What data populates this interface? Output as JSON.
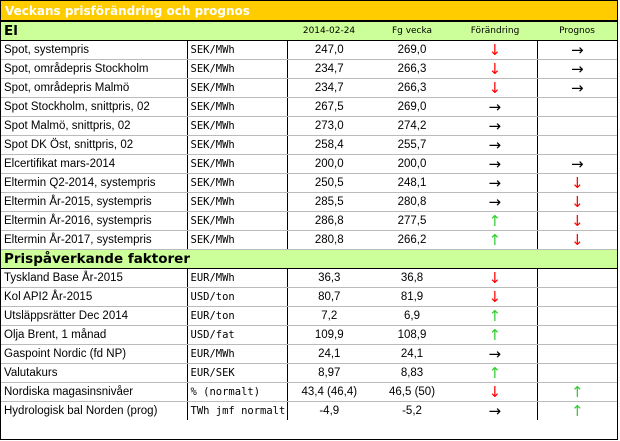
{
  "title": "Veckans prisförändring och prognos",
  "sections": [
    {
      "name": "El",
      "headers": {
        "date": "2014-02-24",
        "prev": "Fg vecka",
        "change": "Förändring",
        "forecast": "Prognos"
      },
      "rows": [
        {
          "name": "Spot, systempris",
          "unit": "SEK/MWh",
          "v1": "247,0",
          "v2": "269,0",
          "change": "down",
          "forecast": "right"
        },
        {
          "name": "Spot, områdepris Stockholm",
          "unit": "SEK/MWh",
          "v1": "234,7",
          "v2": "266,3",
          "change": "down",
          "forecast": "right"
        },
        {
          "name": "Spot, områdepris Malmö",
          "unit": "SEK/MWh",
          "v1": "234,7",
          "v2": "266,3",
          "change": "down",
          "forecast": "right"
        },
        {
          "name": "Spot Stockholm, snittpris,  02",
          "unit": "SEK/MWh",
          "v1": "267,5",
          "v2": "269,0",
          "change": "right",
          "forecast": ""
        },
        {
          "name": "Spot Malmö, snittpris,  02",
          "unit": "SEK/MWh",
          "v1": "273,0",
          "v2": "274,2",
          "change": "right",
          "forecast": ""
        },
        {
          "name": "Spot DK Öst, snittpris,  02",
          "unit": "SEK/MWh",
          "v1": "258,4",
          "v2": "255,7",
          "change": "right",
          "forecast": ""
        },
        {
          "name": "Elcertifikat mars-2014",
          "unit": "SEK/MWh",
          "v1": "200,0",
          "v2": "200,0",
          "change": "right",
          "forecast": "right"
        },
        {
          "name": "Eltermin Q2-2014, systempris",
          "unit": "SEK/MWh",
          "v1": "250,5",
          "v2": "248,1",
          "change": "right",
          "forecast": "down"
        },
        {
          "name": "Eltermin År-2015, systempris",
          "unit": "SEK/MWh",
          "v1": "285,5",
          "v2": "280,8",
          "change": "right",
          "forecast": "down"
        },
        {
          "name": "Eltermin År-2016, systempris",
          "unit": "SEK/MWh",
          "v1": "286,8",
          "v2": "277,5",
          "change": "up",
          "forecast": "down"
        },
        {
          "name": "Eltermin År-2017, systempris",
          "unit": "SEK/MWh",
          "v1": "280,8",
          "v2": "266,2",
          "change": "up",
          "forecast": "down"
        }
      ]
    },
    {
      "name": "Prispåverkande faktorer",
      "rows": [
        {
          "name": "Tyskland Base År-2015",
          "unit": "EUR/MWh",
          "v1": "36,3",
          "v2": "36,8",
          "change": "down",
          "forecast": ""
        },
        {
          "name": "Kol API2 År-2015",
          "unit": "USD/ton",
          "v1": "80,7",
          "v2": "81,9",
          "change": "down",
          "forecast": ""
        },
        {
          "name": "Utsläppsrätter Dec 2014",
          "unit": "EUR/ton",
          "v1": "7,2",
          "v2": "6,9",
          "change": "up",
          "forecast": ""
        },
        {
          "name": "Olja Brent, 1 månad",
          "unit": "USD/fat",
          "v1": "109,9",
          "v2": "108,9",
          "change": "up",
          "forecast": ""
        },
        {
          "name": "Gaspoint Nordic (fd NP)",
          "unit": "EUR/MWh",
          "v1": "24,1",
          "v2": "24,1",
          "change": "right",
          "forecast": ""
        },
        {
          "name": "Valutakurs",
          "unit": "EUR/SEK",
          "v1": "8,97",
          "v2": "8,83",
          "change": "up",
          "forecast": ""
        },
        {
          "name": "Nordiska magasinsnivåer",
          "unit": "%  (normalt)",
          "v1": "43,4 (46,4)",
          "v2": "46,5 (50)",
          "change": "down",
          "forecast": "up"
        },
        {
          "name": "Hydrologisk bal Norden (prog)",
          "unit": "TWh jmf normalt",
          "v1": "-4,9",
          "v2": "-5,2",
          "change": "right",
          "forecast": "up"
        }
      ]
    }
  ],
  "icons": {
    "up": "arrow-up-icon",
    "down": "arrow-down-icon",
    "right": "arrow-right-icon"
  },
  "colors": {
    "header": "#ffcc00",
    "section": "#ccff99",
    "up": "#33cc33",
    "down": "#ff0000"
  }
}
